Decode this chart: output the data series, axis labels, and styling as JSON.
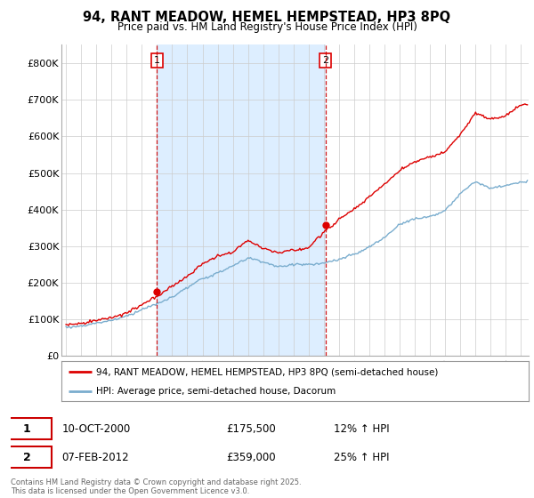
{
  "title": "94, RANT MEADOW, HEMEL HEMPSTEAD, HP3 8PQ",
  "subtitle": "Price paid vs. HM Land Registry's House Price Index (HPI)",
  "red_label": "94, RANT MEADOW, HEMEL HEMPSTEAD, HP3 8PQ (semi-detached house)",
  "blue_label": "HPI: Average price, semi-detached house, Dacorum",
  "footer": "Contains HM Land Registry data © Crown copyright and database right 2025.\nThis data is licensed under the Open Government Licence v3.0.",
  "sale1_date": "10-OCT-2000",
  "sale1_price": "£175,500",
  "sale1_hpi": "12% ↑ HPI",
  "sale2_date": "07-FEB-2012",
  "sale2_price": "£359,000",
  "sale2_hpi": "25% ↑ HPI",
  "vline1_x": 2001.0,
  "vline2_x": 2012.1,
  "sale1_year": 2001.0,
  "sale1_val": 175500,
  "sale2_year": 2012.1,
  "sale2_val": 359000,
  "ylim": [
    0,
    850000
  ],
  "yticks": [
    0,
    100000,
    200000,
    300000,
    400000,
    500000,
    600000,
    700000,
    800000
  ],
  "ytick_labels": [
    "£0",
    "£100K",
    "£200K",
    "£300K",
    "£400K",
    "£500K",
    "£600K",
    "£700K",
    "£800K"
  ],
  "red_color": "#dd0000",
  "blue_color": "#7aadce",
  "vline_color": "#cc0000",
  "shade_color": "#ddeeff",
  "grid_color": "#cccccc",
  "background_color": "#ffffff",
  "xlim_left": 1994.7,
  "xlim_right": 2025.5
}
